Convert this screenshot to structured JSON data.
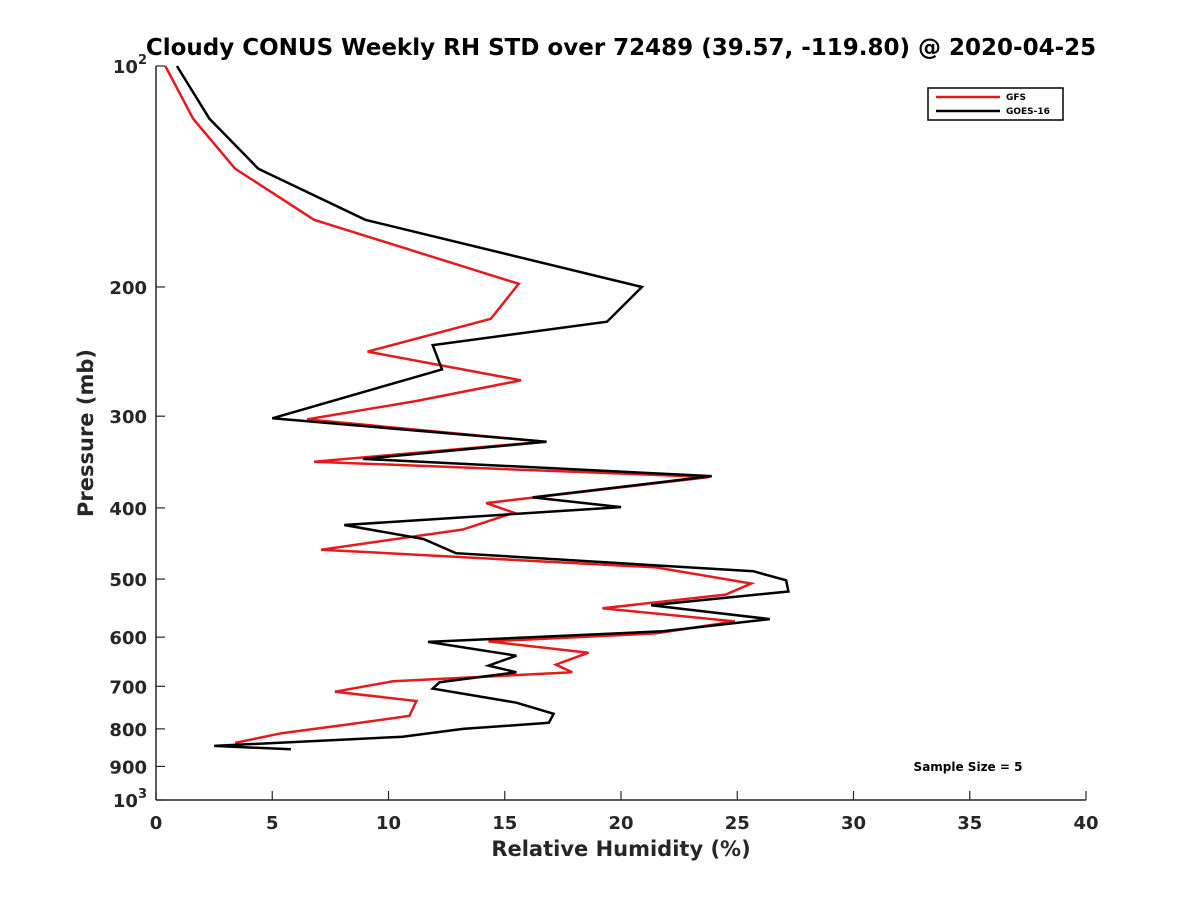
{
  "chart_data": {
    "type": "line",
    "title": "Cloudy CONUS Weekly RH STD over 72489 (39.57, -119.80) @ 2020-04-25",
    "xlabel": "Relative Humidity (%)",
    "ylabel": "Pressure (mb)",
    "xlim": [
      0,
      40
    ],
    "ylim": [
      100,
      1000
    ],
    "yscale": "log",
    "y_reversed": true,
    "grid": false,
    "x_ticks": [
      0,
      5,
      10,
      15,
      20,
      25,
      30,
      35,
      40
    ],
    "x_tick_labels": [
      "0",
      "5",
      "10",
      "15",
      "20",
      "25",
      "30",
      "35",
      "40"
    ],
    "y_ticks": [
      100,
      200,
      300,
      400,
      500,
      600,
      700,
      800,
      900,
      1000
    ],
    "y_tick_labels": [
      {
        "base": "10",
        "exp": "2"
      },
      {
        "base": "200",
        "exp": ""
      },
      {
        "base": "300",
        "exp": ""
      },
      {
        "base": "400",
        "exp": ""
      },
      {
        "base": "500",
        "exp": ""
      },
      {
        "base": "600",
        "exp": ""
      },
      {
        "base": "700",
        "exp": ""
      },
      {
        "base": "800",
        "exp": ""
      },
      {
        "base": "900",
        "exp": ""
      },
      {
        "base": "10",
        "exp": "3"
      }
    ],
    "legend_position": "top-right",
    "series": [
      {
        "name": "GFS",
        "color": "#e41a1c",
        "points": [
          [
            0.4,
            100
          ],
          [
            1.6,
            118
          ],
          [
            3.4,
            138
          ],
          [
            6.8,
            162
          ],
          [
            15.6,
            198
          ],
          [
            14.4,
            221
          ],
          [
            9.1,
            245
          ],
          [
            15.7,
            268
          ],
          [
            11.2,
            286
          ],
          [
            6.5,
            303
          ],
          [
            16.7,
            325
          ],
          [
            6.8,
            346
          ],
          [
            23.8,
            363
          ],
          [
            14.2,
            394
          ],
          [
            15.4,
            406
          ],
          [
            13.2,
            428
          ],
          [
            7.1,
            456
          ],
          [
            21.5,
            482
          ],
          [
            25.6,
            507
          ],
          [
            24.5,
            525
          ],
          [
            19.2,
            548
          ],
          [
            24.9,
            571
          ],
          [
            21.5,
            593
          ],
          [
            14.3,
            608
          ],
          [
            18.6,
            630
          ],
          [
            17.2,
            654
          ],
          [
            17.9,
            670
          ],
          [
            10.2,
            689
          ],
          [
            7.7,
            712
          ],
          [
            11.2,
            733
          ],
          [
            10.9,
            768
          ],
          [
            8.0,
            791
          ],
          [
            5.4,
            811
          ],
          [
            3.4,
            836
          ]
        ]
      },
      {
        "name": "GOES-16",
        "color": "#000000",
        "points": [
          [
            0.9,
            100
          ],
          [
            2.3,
            118
          ],
          [
            4.4,
            138
          ],
          [
            9.0,
            162
          ],
          [
            20.9,
            200
          ],
          [
            19.4,
            223
          ],
          [
            11.9,
            240
          ],
          [
            12.3,
            259
          ],
          [
            5.0,
            302
          ],
          [
            16.8,
            325
          ],
          [
            8.9,
            343
          ],
          [
            23.9,
            362
          ],
          [
            16.2,
            387
          ],
          [
            20.0,
            399
          ],
          [
            8.1,
            422
          ],
          [
            11.5,
            441
          ],
          [
            12.9,
            461
          ],
          [
            25.7,
            488
          ],
          [
            27.1,
            502
          ],
          [
            27.2,
            520
          ],
          [
            21.3,
            543
          ],
          [
            26.4,
            567
          ],
          [
            21.8,
            589
          ],
          [
            11.7,
            609
          ],
          [
            15.5,
            636
          ],
          [
            14.3,
            656
          ],
          [
            15.5,
            670
          ],
          [
            12.2,
            691
          ],
          [
            11.9,
            705
          ],
          [
            15.5,
            737
          ],
          [
            17.1,
            763
          ],
          [
            16.9,
            785
          ],
          [
            13.2,
            800
          ],
          [
            10.6,
            820
          ],
          [
            2.5,
            844
          ],
          [
            5.8,
            853
          ]
        ]
      }
    ],
    "annotations": [
      {
        "text": "Sample Size = 5"
      }
    ]
  }
}
